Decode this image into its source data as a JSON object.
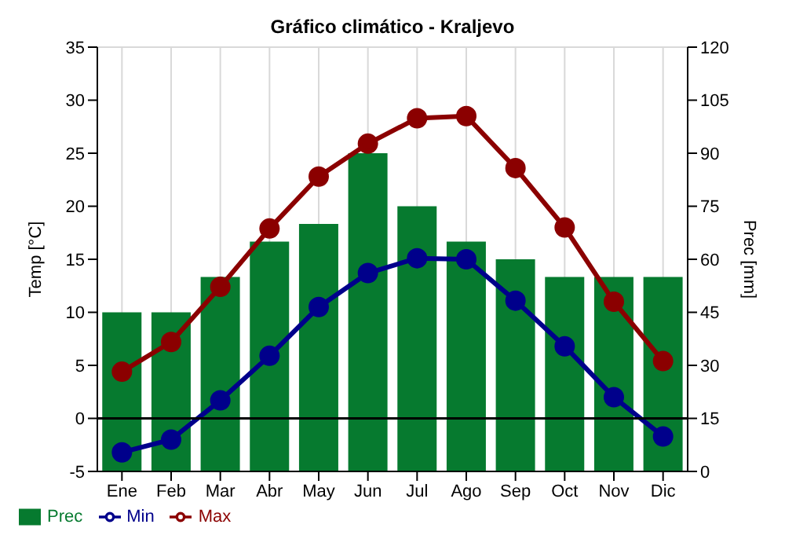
{
  "chart_data": {
    "type": "bar",
    "title": "Gráfico climático - Kraljevo",
    "ylabel": "Temp [°C]",
    "y2label": "Prec [mm]",
    "categories": [
      "Ene",
      "Feb",
      "Mar",
      "Abr",
      "May",
      "Jun",
      "Jul",
      "Ago",
      "Sep",
      "Oct",
      "Nov",
      "Dic"
    ],
    "series": [
      {
        "name": "Prec",
        "axis": "y2",
        "color": "#067a2f",
        "values": [
          45,
          45,
          55,
          65,
          70,
          90,
          75,
          65,
          60,
          55,
          55,
          55
        ]
      },
      {
        "name": "Min",
        "type": "line",
        "color": "#00008b",
        "values": [
          -3.2,
          -2,
          1.7,
          5.9,
          10.5,
          13.7,
          15.1,
          15,
          11.1,
          6.8,
          2,
          -1.7
        ]
      },
      {
        "name": "Max",
        "type": "line",
        "color": "#8b0000",
        "values": [
          4.4,
          7.2,
          12.4,
          17.9,
          22.8,
          25.9,
          28.3,
          28.5,
          23.6,
          18,
          11,
          5.4
        ]
      }
    ],
    "ylim": [
      -5,
      35
    ],
    "yticks": [
      -5,
      0,
      5,
      10,
      15,
      20,
      25,
      30,
      35
    ],
    "y2lim": [
      0,
      120
    ],
    "y2ticks": [
      0,
      15,
      30,
      45,
      60,
      75,
      90,
      105,
      120
    ],
    "ref_lines": [
      {
        "axis": "y",
        "value": 0,
        "color": "#000000"
      }
    ],
    "grid": true,
    "legend": "bottom",
    "marker": "circle"
  }
}
